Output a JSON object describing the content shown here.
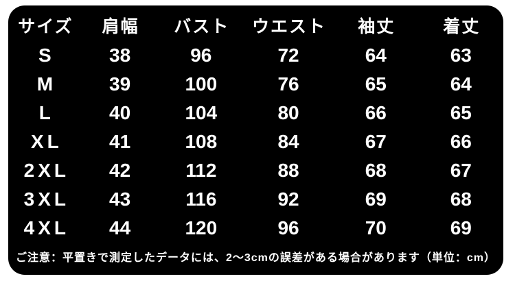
{
  "colors": {
    "page_bg": "#ffffff",
    "panel_bg": "#000000",
    "text": "#ffffff"
  },
  "chart_data": {
    "type": "table",
    "title": "",
    "unit": "cm",
    "columns": [
      "サイズ",
      "肩幅",
      "バスト",
      "ウエスト",
      "袖丈",
      "着丈"
    ],
    "rows": [
      [
        "S",
        38,
        96,
        72,
        64,
        63
      ],
      [
        "M",
        39,
        100,
        76,
        65,
        64
      ],
      [
        "L",
        40,
        104,
        80,
        66,
        65
      ],
      [
        "XL",
        41,
        108,
        84,
        67,
        66
      ],
      [
        "2XL",
        42,
        112,
        88,
        68,
        67
      ],
      [
        "3XL",
        43,
        116,
        92,
        69,
        68
      ],
      [
        "4XL",
        44,
        120,
        96,
        70,
        69
      ]
    ],
    "note": "ご注意：平置きで測定したデータには、2～3cmの誤差がある場合があります（単位：cm）"
  },
  "header": {
    "size": "サイズ",
    "shoulder": "肩幅",
    "bust": "バスト",
    "waist": "ウエスト",
    "sleeve": "袖丈",
    "length": "着丈"
  },
  "footer": {
    "note": "ご注意：平置きで測定したデータには、2～3cmの誤差がある場合があります（単位：cm）"
  }
}
